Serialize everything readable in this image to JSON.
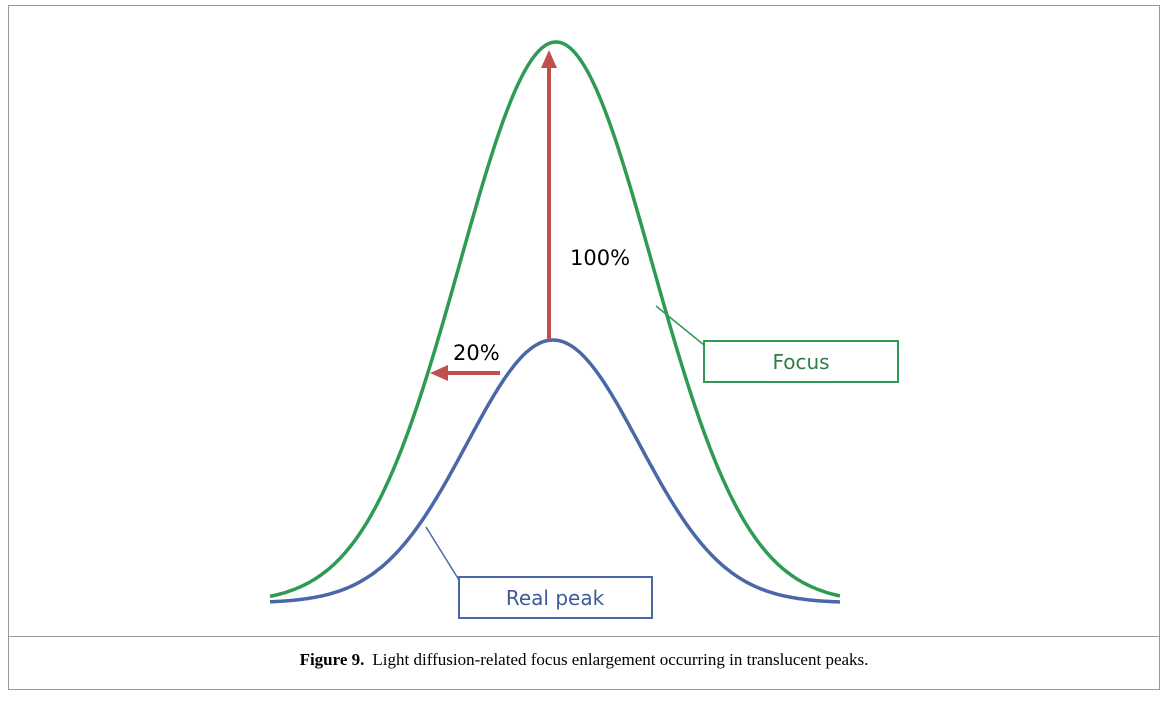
{
  "figure": {
    "labels": {
      "increase": "100%",
      "spread": "20%"
    },
    "legend": {
      "focus": "Focus",
      "real_peak": "Real peak"
    },
    "caption": {
      "number": "Figure 9.",
      "text": "Light diffusion-related focus enlargement occurring in translucent peaks."
    }
  }
}
